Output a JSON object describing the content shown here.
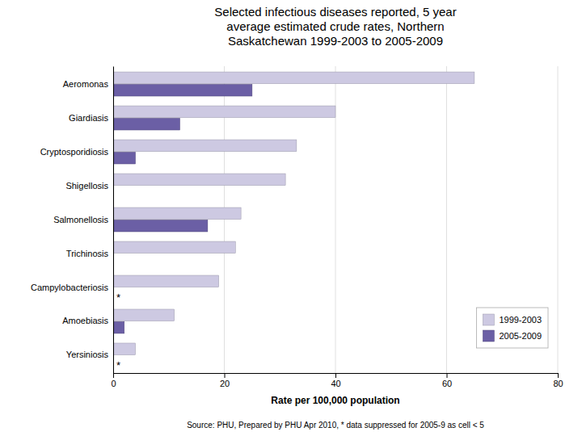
{
  "chart_data": {
    "type": "bar",
    "orientation": "horizontal",
    "title": "Selected infectious diseases reported, 5 year\naverage estimated crude rates, Northern\nSaskatchewan 1999-2003 to 2005-2009",
    "categories": [
      "Aeromonas",
      "Giardiasis",
      "Cryptosporidiosis",
      "Shigellosis",
      "Salmonellosis",
      "Trichinosis",
      "Campylobacteriosis",
      "Amoebiasis",
      "Yersiniosis"
    ],
    "series": [
      {
        "name": "1999-2003",
        "color": "#cdc9e2",
        "values": [
          65,
          40,
          33,
          31,
          23,
          22,
          19,
          11,
          4
        ]
      },
      {
        "name": "2005-2009",
        "color": "#6b5fa5",
        "values": [
          25,
          12,
          4,
          0,
          17,
          0,
          0,
          2,
          0
        ]
      }
    ],
    "xlabel": "Rate per 100,000 population",
    "xlim": [
      0,
      80
    ],
    "xticks": [
      0,
      20,
      40,
      60,
      80
    ],
    "grid": true,
    "legend": "lower right",
    "annotations": [
      {
        "text": "*",
        "category": "Campylobacteriosis",
        "series": "2005-2009"
      },
      {
        "text": "*",
        "category": "Yersiniosis",
        "series": "2005-2009"
      }
    ],
    "source": "Source: PHU, Prepared by PHU Apr 2010, * data suppressed for 2005-9 as cell < 5"
  }
}
